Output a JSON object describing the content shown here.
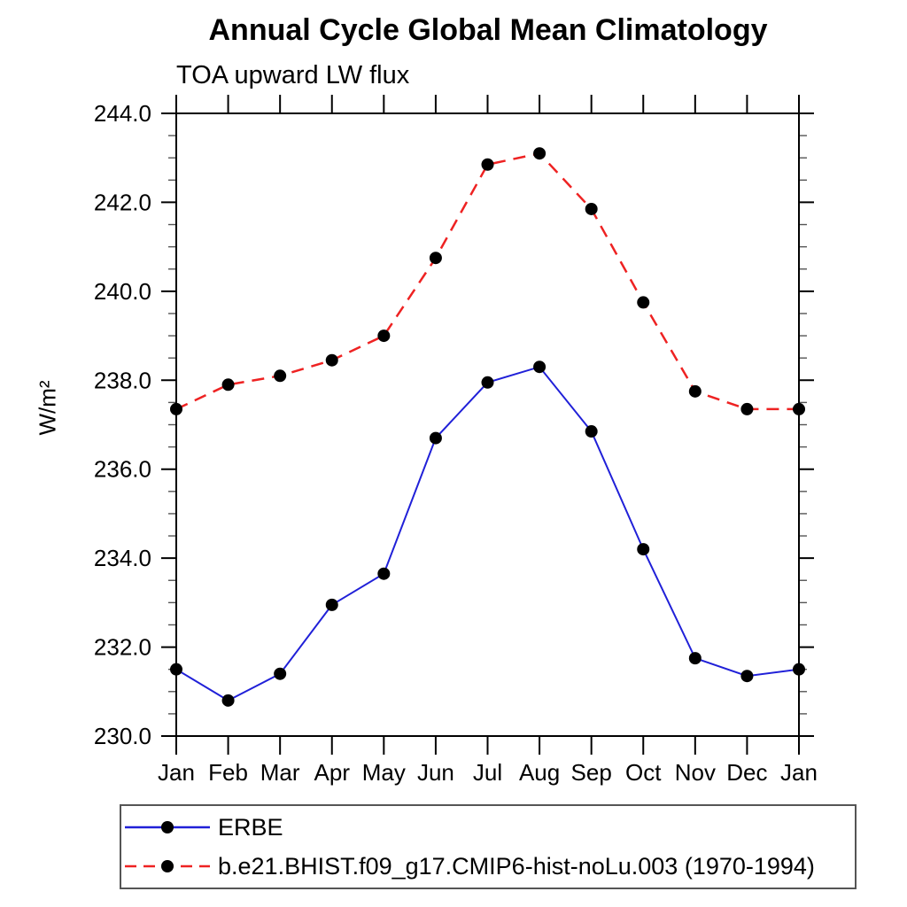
{
  "chart_data": {
    "type": "line",
    "title": "Annual Cycle Global Mean Climatology",
    "subtitle": "TOA upward LW flux",
    "ylabel": "W/m²",
    "x_categories": [
      "Jan",
      "Feb",
      "Mar",
      "Apr",
      "May",
      "Jun",
      "Jul",
      "Aug",
      "Sep",
      "Oct",
      "Nov",
      "Dec",
      "Jan"
    ],
    "ylim": [
      230.0,
      244.0
    ],
    "ytick_interval": 2.0,
    "ytick_minor_interval": 0.5,
    "ytick_label_format": "one_decimal",
    "grid": false,
    "legend_position": "bottom",
    "marker": "filled-circle",
    "marker_color": "#000000",
    "axis_color": "#000000",
    "series": [
      {
        "name": "ERBE",
        "color": "#2020d8",
        "line_style": "solid",
        "values": [
          231.5,
          230.8,
          231.4,
          232.95,
          233.65,
          236.7,
          237.95,
          238.3,
          236.85,
          234.2,
          231.75,
          231.35,
          231.5
        ]
      },
      {
        "name": "b.e21.BHIST.f09_g17.CMIP6-hist-noLu.003 (1970-1994)",
        "color": "#ee2222",
        "line_style": "dashed",
        "values": [
          237.35,
          237.9,
          238.1,
          238.45,
          239.0,
          240.75,
          242.85,
          243.1,
          241.85,
          239.75,
          237.75,
          237.35,
          237.35
        ]
      }
    ]
  }
}
